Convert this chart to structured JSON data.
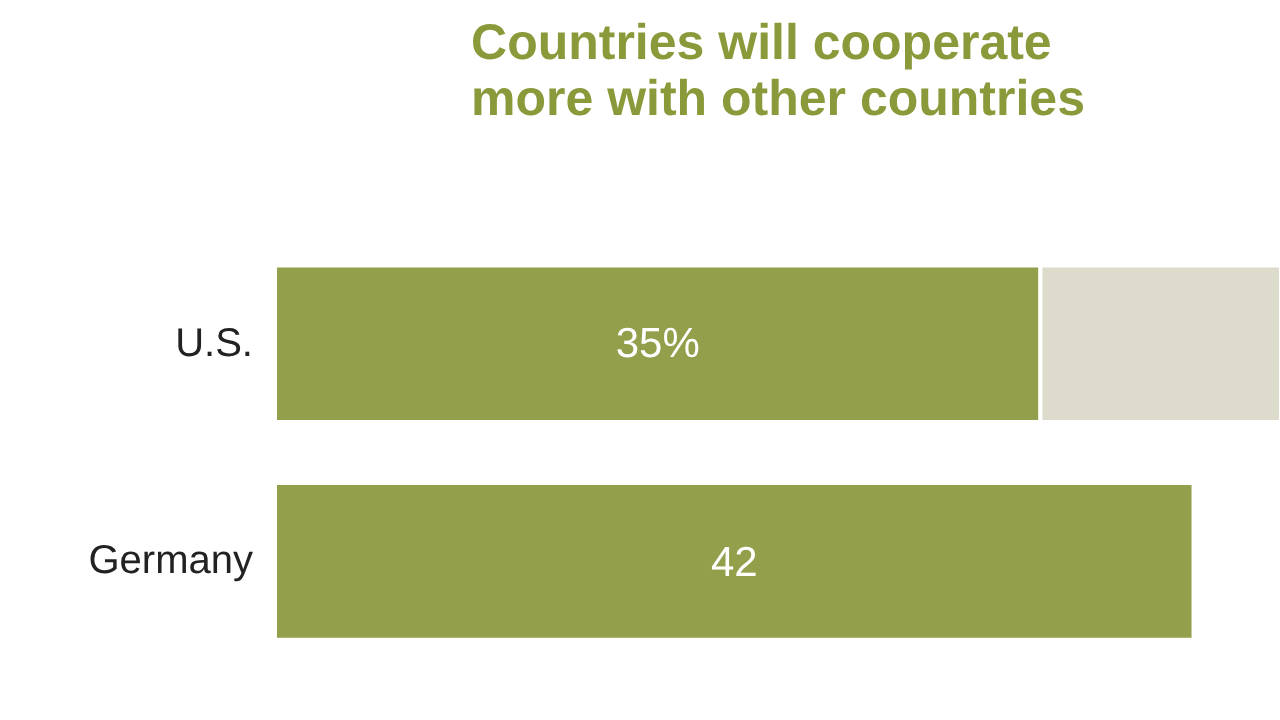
{
  "chart_data": {
    "type": "bar",
    "orientation": "horizontal",
    "stacked": true,
    "title": "Countries will cooperate more with other countries",
    "categories": [
      "U.S.",
      "Germany"
    ],
    "series": [
      {
        "color": "#939f4a",
        "values": [
          35,
          42
        ],
        "value_labels": [
          "35%",
          "42"
        ]
      },
      {
        "color": "#dddbcb",
        "values": [
          11,
          null
        ]
      }
    ],
    "xlim": [
      0,
      46
    ],
    "grid": false
  }
}
